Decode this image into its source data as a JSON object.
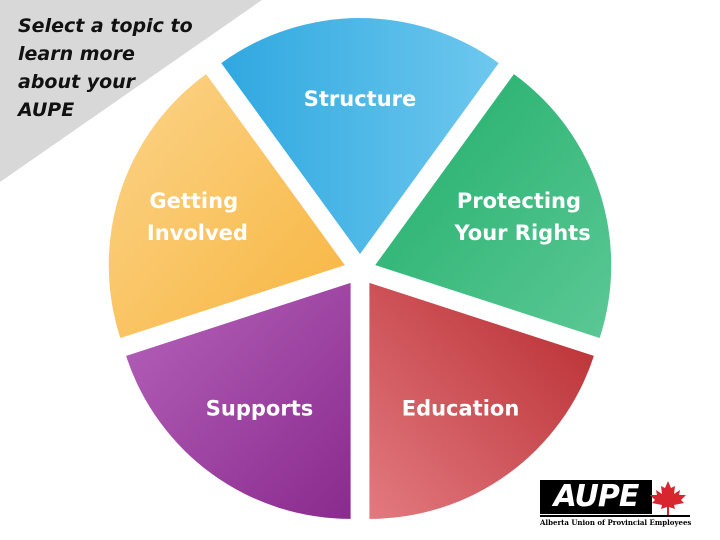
{
  "prompt": {
    "lines": [
      "Select a topic to",
      "learn more",
      "about your",
      "AUPE"
    ]
  },
  "topics": [
    {
      "id": "structure",
      "lines": [
        "Structure"
      ],
      "color_a": "#2fa8e0",
      "color_b": "#6ec8ee"
    },
    {
      "id": "protecting",
      "lines": [
        "Protecting",
        "Your Rights"
      ],
      "color_a": "#1fae6a",
      "color_b": "#5cc895"
    },
    {
      "id": "education",
      "lines": [
        "Education"
      ],
      "color_a": "#b72a2e",
      "color_b": "#e27a80"
    },
    {
      "id": "supports",
      "lines": [
        "Supports"
      ],
      "color_a": "#8a2a8e",
      "color_b": "#b563ba"
    },
    {
      "id": "involved",
      "lines": [
        "Getting",
        "Involved"
      ],
      "color_a": "#f7b53f",
      "color_b": "#fcd48a"
    }
  ],
  "logo": {
    "name": "AUPE",
    "tagline": "Alberta Union of Provincial Employees",
    "leaf_color": "#d7262d"
  },
  "colors": {
    "corner": "#d8d8d8"
  }
}
